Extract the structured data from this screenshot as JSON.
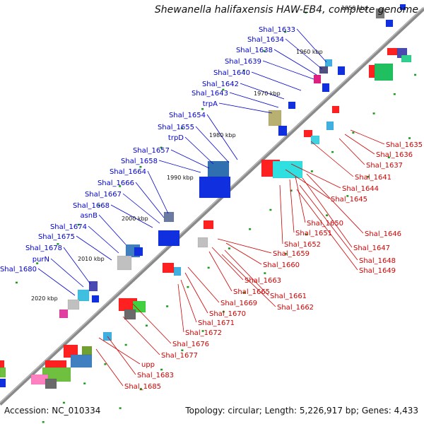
{
  "title": "Shewanella halifaxensis HAW-EB4, complete genome",
  "footer": {
    "accession": "Accession: NC_010334",
    "summary": "Topology: circular; Length: 5,226,917 bp; Genes: 4,433"
  },
  "colors": {
    "backbone": "#8a8a8a",
    "leading_labels": "#0000d0",
    "lagging_labels": "#d00000",
    "tick": "#1a9a1a"
  },
  "kbp_labels": [
    "1950 kbp",
    "1960 kbp",
    "1970 kbp",
    "1980 kbp",
    "1990 kbp",
    "2000 kbp",
    "2010 kbp",
    "2020 kbp"
  ],
  "leading_genes": [
    "Shal_1633",
    "Shal_1634",
    "Shal_1638",
    "Shal_1639",
    "Shal_1640",
    "Shal_1642",
    "Shal_1643",
    "trpA",
    "Shal_1654",
    "Shal_1655",
    "trpD",
    "Shal_1657",
    "Shal_1658",
    "Shal_1664",
    "Shal_1666",
    "Shal_1667",
    "Shal_1668",
    "asnB",
    "Shal_1674",
    "Shal_1675",
    "Shal_1678",
    "purN",
    "Shal_1680"
  ],
  "lagging_genes": [
    "Shal_1635",
    "Shal_1636",
    "Shal_1637",
    "Shal_1641",
    "Shal_1644",
    "Shal_1645",
    "Shal_1650",
    "Shal_1651",
    "Shal_1646",
    "Shal_1652",
    "Shal_1647",
    "Shal_1648",
    "Shal_1649",
    "Shal_1659",
    "Shal_1660",
    "Shal_1663",
    "Shal_1665",
    "Shal_1661",
    "Shal_1662",
    "Shal_1669",
    "Shal_1670",
    "Shal_1671",
    "Shal_1672",
    "Shal_1676",
    "Shal_1677",
    "upp",
    "Shal_1683",
    "Shal_1685"
  ]
}
